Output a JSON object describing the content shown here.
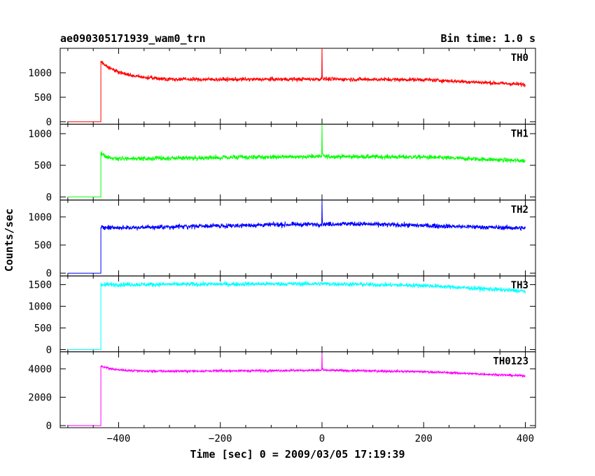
{
  "chart_data": {
    "type": "line",
    "title": "ae090305171939_wam0_trn",
    "subtitle": "Bin time: 1.0 s",
    "xlabel": "Time [sec] 0 = 2009/03/05 17:19:39",
    "ylabel": "Counts/sec",
    "xlim": [
      -515,
      420
    ],
    "xticks": [
      -400,
      -200,
      0,
      200,
      400
    ],
    "x_tick_labels": [
      "−400",
      "−200",
      "0",
      "200",
      "400"
    ],
    "panels": [
      {
        "name": "TH0",
        "color": "#ff0000",
        "ylim": [
          -50,
          1500
        ],
        "yticks": [
          0,
          500,
          1000
        ],
        "pre_level": 0,
        "onset_x": -435,
        "onset_peak": 1230,
        "decay_to": 870,
        "decay_time": 40,
        "baseline": [
          [
            -435,
            870
          ],
          [
            -300,
            860
          ],
          [
            0,
            870
          ],
          [
            200,
            860
          ],
          [
            400,
            760
          ]
        ],
        "noise": 40,
        "spike": {
          "x": 0,
          "y": 1550
        }
      },
      {
        "name": "TH1",
        "color": "#00ff00",
        "ylim": [
          -50,
          1150
        ],
        "yticks": [
          0,
          500,
          1000
        ],
        "pre_level": 0,
        "onset_x": -435,
        "onset_peak": 700,
        "decay_to": 600,
        "decay_time": 10,
        "baseline": [
          [
            -435,
            600
          ],
          [
            0,
            640
          ],
          [
            200,
            630
          ],
          [
            400,
            570
          ]
        ],
        "noise": 35,
        "spike": {
          "x": 0,
          "y": 1150
        }
      },
      {
        "name": "TH2",
        "color": "#0000ff",
        "ylim": [
          -50,
          1300
        ],
        "yticks": [
          0,
          500,
          1000
        ],
        "pre_level": 0,
        "onset_x": -435,
        "onset_peak": 820,
        "decay_to": 800,
        "decay_time": 5,
        "baseline": [
          [
            -435,
            800
          ],
          [
            -100,
            860
          ],
          [
            0,
            870
          ],
          [
            50,
            880
          ],
          [
            400,
            800
          ]
        ],
        "noise": 40,
        "spike": {
          "x": 0,
          "y": 1300
        }
      },
      {
        "name": "TH3",
        "color": "#00ffff",
        "ylim": [
          -50,
          1700
        ],
        "yticks": [
          0,
          500,
          1000,
          1500
        ],
        "pre_level": 0,
        "onset_x": -435,
        "onset_peak": 1500,
        "decay_to": 1500,
        "decay_time": 5,
        "baseline": [
          [
            -435,
            1500
          ],
          [
            0,
            1520
          ],
          [
            200,
            1480
          ],
          [
            400,
            1350
          ]
        ],
        "noise": 50,
        "spike": null
      },
      {
        "name": "TH0123",
        "color": "#ff00ff",
        "ylim": [
          -150,
          5200
        ],
        "yticks": [
          0,
          2000,
          4000
        ],
        "pre_level": 0,
        "onset_x": -435,
        "onset_peak": 4200,
        "decay_to": 3800,
        "decay_time": 30,
        "baseline": [
          [
            -435,
            3800
          ],
          [
            0,
            3900
          ],
          [
            200,
            3800
          ],
          [
            400,
            3500
          ]
        ],
        "noise": 80,
        "spike": {
          "x": 0,
          "y": 5100
        }
      }
    ],
    "grid": false,
    "legend": "none"
  }
}
